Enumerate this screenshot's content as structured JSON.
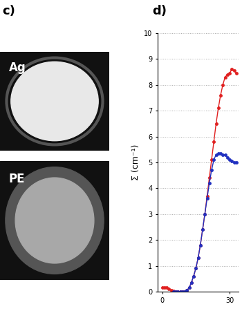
{
  "panel_c": {
    "label": "c)",
    "images": [
      {
        "label": "Ag"
      },
      {
        "label": "PE"
      }
    ]
  },
  "chart_data": {
    "type": "line",
    "title": "d)",
    "y_label": "Σ (cm⁻¹)",
    "x": [
      0,
      1,
      2,
      3,
      4,
      5,
      6,
      7,
      8,
      9,
      10,
      11,
      12,
      13,
      14,
      15,
      16,
      17,
      18,
      19,
      20,
      21,
      22,
      23,
      24,
      25,
      26,
      27,
      28,
      29,
      30,
      31,
      32,
      33
    ],
    "series": [
      {
        "color": "#e02020",
        "marker": "o",
        "line_style": "solid",
        "values": [
          0.15,
          0.15,
          0.15,
          0.1,
          0.05,
          0.02,
          0,
          0,
          0,
          0,
          0,
          0.05,
          0.15,
          0.35,
          0.6,
          0.9,
          1.3,
          1.8,
          2.4,
          3.0,
          3.7,
          4.4,
          5.1,
          5.8,
          6.5,
          7.1,
          7.6,
          8.0,
          8.3,
          8.4,
          8.45,
          8.6,
          8.55,
          8.45
        ]
      },
      {
        "color": "#2030c0",
        "marker": "o",
        "line_style": "solid",
        "values": [
          null,
          null,
          null,
          null,
          null,
          0,
          0,
          0,
          0,
          0,
          0,
          0.05,
          0.15,
          0.35,
          0.6,
          0.9,
          1.3,
          1.8,
          2.4,
          3.0,
          3.6,
          4.2,
          4.7,
          5.1,
          5.3,
          5.35,
          5.35,
          5.3,
          5.3,
          5.2,
          5.1,
          5.05,
          5.0,
          5.0
        ]
      }
    ],
    "xlim": [
      -2,
      34
    ],
    "xticks": [
      0,
      30
    ],
    "ylim": [
      0,
      10
    ],
    "yticks": [
      0,
      1,
      2,
      3,
      4,
      5,
      6,
      7,
      8,
      9,
      10
    ],
    "grid": "y"
  }
}
